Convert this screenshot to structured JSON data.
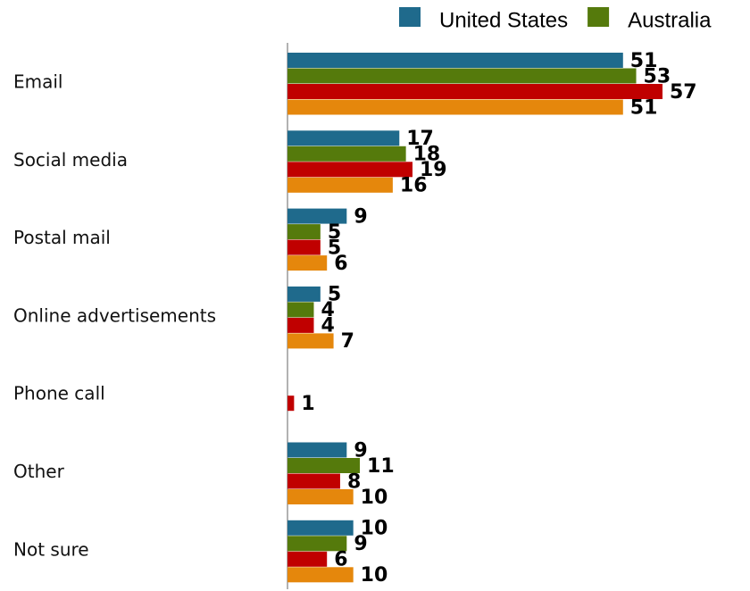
{
  "chart_data": {
    "type": "hbar",
    "categories": [
      "Email",
      "Social media",
      "Postal mail",
      "Online advertisements",
      "Phone call",
      "Other",
      "Not sure"
    ],
    "series": [
      {
        "name": "United States",
        "color": "#1f6a8c",
        "values": [
          51,
          17,
          9,
          5,
          null,
          9,
          10
        ]
      },
      {
        "name": "Australia",
        "color": "#557a0c",
        "values": [
          53,
          18,
          5,
          4,
          null,
          11,
          9
        ]
      },
      {
        "color": "#c00000",
        "values": [
          57,
          19,
          5,
          4,
          1,
          8,
          6
        ]
      },
      {
        "color": "#e5870c",
        "values": [
          51,
          16,
          6,
          7,
          null,
          10,
          10
        ]
      }
    ],
    "legend": "top-right"
  }
}
